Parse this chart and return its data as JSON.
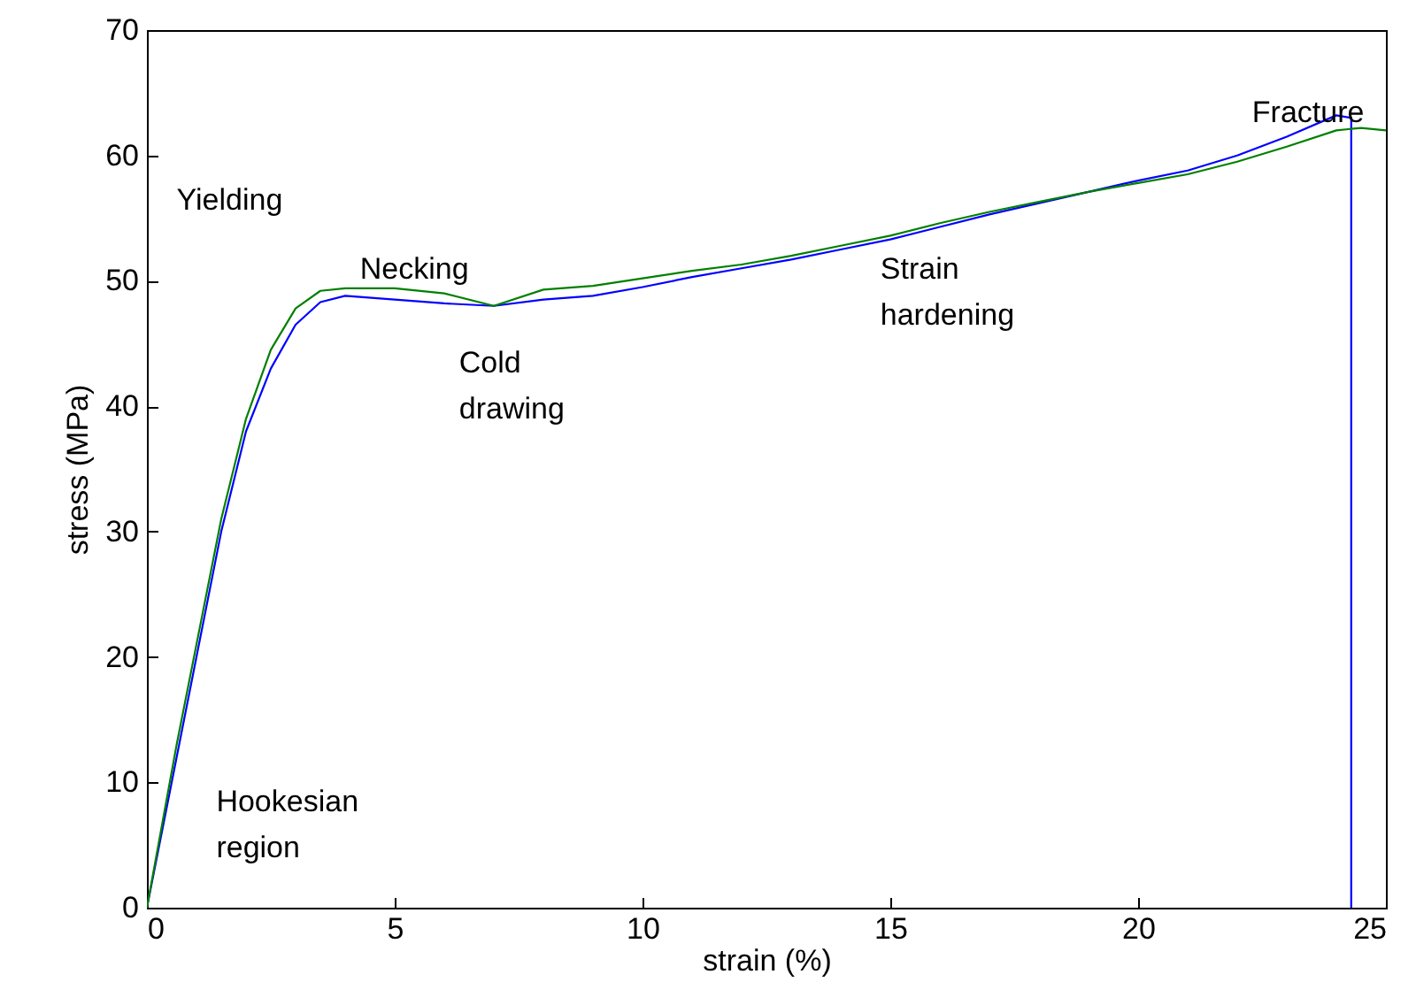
{
  "chart_data": {
    "type": "line",
    "xlabel": "strain (%)",
    "ylabel": "stress (MPa)",
    "xlim": [
      0,
      25
    ],
    "xticks": [
      0,
      5,
      10,
      15,
      20,
      25
    ],
    "ylim": [
      0,
      70
    ],
    "yticks": [
      0,
      10,
      20,
      30,
      40,
      50,
      60,
      70
    ],
    "grid": false,
    "legend": false,
    "marker": "none",
    "line_style": "solid",
    "annotations": [
      "Yielding",
      "Necking",
      "Cold drawing",
      "Strain hardening",
      "Fracture",
      "Hookesian region"
    ],
    "series": [
      {
        "color": "#0000ff",
        "x": [
          0,
          0.3,
          0.6,
          1,
          1.5,
          2,
          2.5,
          3,
          3.5,
          4,
          5,
          6,
          7,
          8,
          9,
          10,
          11,
          12,
          13,
          14,
          15,
          16,
          17,
          18,
          19,
          20,
          21,
          22,
          23,
          24,
          24.3,
          24.3
        ],
        "values": [
          0,
          6,
          12,
          20,
          30,
          38,
          43,
          46.5,
          48.3,
          48.8,
          48.5,
          48.2,
          48,
          48.5,
          48.8,
          49.5,
          50.3,
          51,
          51.7,
          52.5,
          53.3,
          54.3,
          55.3,
          56.2,
          57.1,
          58,
          58.8,
          60,
          61.5,
          63.2,
          63,
          0
        ]
      },
      {
        "color": "#008000",
        "x": [
          0,
          0.3,
          0.6,
          1,
          1.5,
          2,
          2.5,
          3,
          3.5,
          4,
          5,
          6,
          7,
          8,
          9,
          10,
          11,
          12,
          13,
          14,
          15,
          16,
          17,
          18,
          19,
          20,
          21,
          22,
          23,
          24,
          24.5,
          25
        ],
        "values": [
          0,
          6.5,
          13,
          21,
          31,
          39,
          44.5,
          47.8,
          49.2,
          49.4,
          49.4,
          49,
          48,
          49.3,
          49.6,
          50.2,
          50.8,
          51.3,
          52,
          52.8,
          53.6,
          54.6,
          55.5,
          56.3,
          57.1,
          57.8,
          58.5,
          59.5,
          60.7,
          62,
          62.2,
          62
        ]
      }
    ]
  }
}
